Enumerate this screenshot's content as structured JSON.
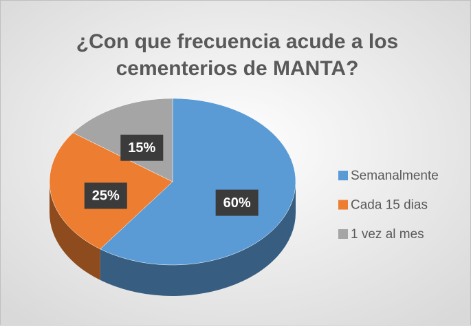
{
  "chart_data": {
    "type": "pie",
    "title": "¿Con que frecuencia acude a los cementerios de MANTA?",
    "title_lines": [
      "¿Con que frecuencia acude a los",
      "cementerios de MANTA?"
    ],
    "categories": [
      "Semanalmente",
      "Cada 15 dias",
      "1 vez al mes"
    ],
    "values": [
      60,
      25,
      15
    ],
    "value_labels": [
      "60%",
      "25%",
      "15%"
    ],
    "colors": [
      "#5b9bd5",
      "#ed7d31",
      "#a5a5a5"
    ],
    "legend": "right"
  }
}
